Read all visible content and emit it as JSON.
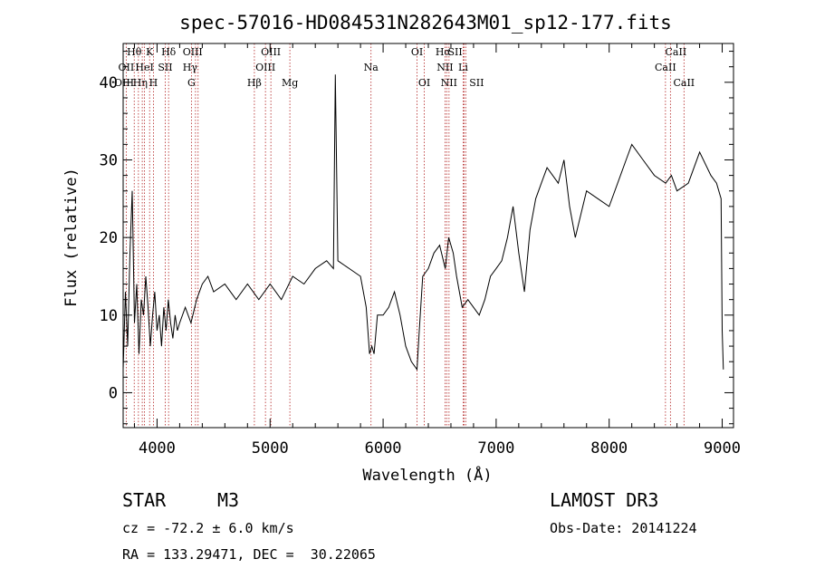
{
  "chart_data": {
    "type": "line",
    "title": "spec-57016-HD084531N282643M01_sp12-177.fits",
    "xlabel": "Wavelength (Å)",
    "ylabel": "Flux (relative)",
    "xlim": [
      3700,
      9100
    ],
    "ylim": [
      -4.5,
      45
    ],
    "xticks": [
      4000,
      5000,
      6000,
      7000,
      8000,
      9000
    ],
    "yticks": [
      0,
      10,
      20,
      30,
      40
    ],
    "grid": false,
    "series": [
      {
        "x": [
          3700,
          3720,
          3740,
          3760,
          3780,
          3800,
          3820,
          3840,
          3860,
          3880,
          3900,
          3920,
          3940,
          3960,
          3980,
          4000,
          4020,
          4040,
          4060,
          4080,
          4100,
          4120,
          4140,
          4160,
          4180,
          4200,
          4250,
          4300,
          4350,
          4400,
          4450,
          4500,
          4600,
          4700,
          4800,
          4900,
          5000,
          5100,
          5200,
          5300,
          5400,
          5500,
          5560,
          5577,
          5600,
          5700,
          5800,
          5850,
          5880,
          5900,
          5920,
          5950,
          6000,
          6050,
          6100,
          6150,
          6200,
          6250,
          6300,
          6320,
          6350,
          6400,
          6450,
          6500,
          6550,
          6580,
          6620,
          6650,
          6700,
          6750,
          6800,
          6850,
          6900,
          6950,
          7000,
          7050,
          7100,
          7150,
          7200,
          7250,
          7300,
          7350,
          7400,
          7450,
          7500,
          7550,
          7600,
          7650,
          7700,
          7750,
          7800,
          7900,
          8000,
          8100,
          8150,
          8200,
          8300,
          8400,
          8500,
          8550,
          8600,
          8700,
          8800,
          8900,
          8950,
          8990,
          9000,
          9010
        ],
        "y": [
          3,
          13,
          6,
          18,
          26,
          9,
          14,
          5,
          12,
          10,
          15,
          11,
          6,
          10,
          13,
          8,
          10,
          6,
          11,
          8,
          12,
          9,
          7,
          10,
          8,
          9,
          11,
          9,
          12,
          14,
          15,
          13,
          14,
          12,
          14,
          12,
          14,
          12,
          15,
          14,
          16,
          17,
          16,
          41,
          17,
          16,
          15,
          11,
          5,
          6,
          5,
          10,
          10,
          11,
          13,
          10,
          6,
          4,
          3,
          8,
          15,
          16,
          18,
          19,
          16,
          20,
          18,
          15,
          11,
          12,
          11,
          10,
          12,
          15,
          16,
          17,
          20,
          24,
          18,
          13,
          21,
          25,
          27,
          29,
          28,
          27,
          30,
          24,
          20,
          23,
          26,
          25,
          24,
          28,
          30,
          32,
          30,
          28,
          27,
          28,
          26,
          27,
          31,
          28,
          27,
          25,
          8,
          3
        ]
      }
    ],
    "line_markers": [
      {
        "label": "Hθ",
        "x": 3798,
        "row": 1,
        "dx": 0
      },
      {
        "label": "K",
        "x": 3934,
        "row": 1,
        "dx": 0
      },
      {
        "label": "Hδ",
        "x": 4102,
        "row": 1,
        "dx": 0
      },
      {
        "label": "OIII",
        "x": 4363,
        "row": 1,
        "dx": -6
      },
      {
        "label": "OIII",
        "x": 5007,
        "row": 1,
        "dx": 0
      },
      {
        "label": "OI",
        "x": 6300,
        "row": 1,
        "dx": 0
      },
      {
        "label": "Hα",
        "x": 6563,
        "row": 1,
        "dx": -4
      },
      {
        "label": "SII",
        "x": 6717,
        "row": 1,
        "dx": -10
      },
      {
        "label": "CaII",
        "x": 8542,
        "row": 1,
        "dx": 6
      },
      {
        "label": "OII",
        "x": 3727,
        "row": 2,
        "dx": 0
      },
      {
        "label": "HeI",
        "x": 3889,
        "row": 2,
        "dx": 0
      },
      {
        "label": "SII",
        "x": 4072,
        "row": 2,
        "dx": 0
      },
      {
        "label": "Hγ",
        "x": 4340,
        "row": 2,
        "dx": -6
      },
      {
        "label": "OIII",
        "x": 4959,
        "row": 2,
        "dx": 0
      },
      {
        "label": "Na",
        "x": 5893,
        "row": 2,
        "dx": 0
      },
      {
        "label": "NII",
        "x": 6548,
        "row": 2,
        "dx": 0
      },
      {
        "label": "Li",
        "x": 6708,
        "row": 2,
        "dx": 0
      },
      {
        "label": "CaII",
        "x": 8498,
        "row": 2,
        "dx": 0
      },
      {
        "label": "OIII",
        "x": 3869,
        "row": 3,
        "dx": -20
      },
      {
        "label": "Hη",
        "x": 3835,
        "row": 3,
        "dx": 2
      },
      {
        "label": "H",
        "x": 3968,
        "row": 3,
        "dx": 0
      },
      {
        "label": "G",
        "x": 4304,
        "row": 3,
        "dx": 0
      },
      {
        "label": "Hβ",
        "x": 4861,
        "row": 3,
        "dx": 0
      },
      {
        "label": "Mg",
        "x": 5175,
        "row": 3,
        "dx": 0
      },
      {
        "label": "OI",
        "x": 6364,
        "row": 3,
        "dx": 0
      },
      {
        "label": "NII",
        "x": 6583,
        "row": 3,
        "dx": 0
      },
      {
        "label": "SII",
        "x": 6731,
        "row": 3,
        "dx": 12
      },
      {
        "label": "CaII",
        "x": 8662,
        "row": 3,
        "dx": 0
      }
    ],
    "colors": {
      "spectrum": "#000000",
      "marker": "#b22222",
      "axis": "#000000"
    }
  },
  "info": {
    "object_type": "STAR",
    "subclass": "M3",
    "survey": "LAMOST DR3",
    "redshift_text": "cz = -72.2 ± 6.0 km/s",
    "obs_date_text": "Obs-Date: 20141224",
    "coords_text": "RA = 133.29471, DEC =  30.22065"
  }
}
